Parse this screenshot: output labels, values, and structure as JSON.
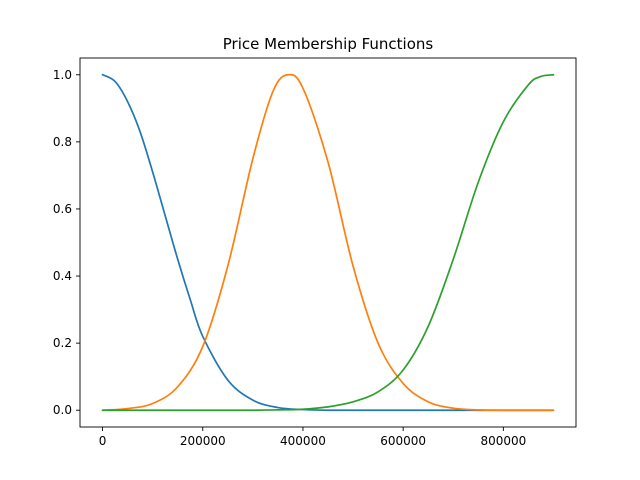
{
  "chart_data": {
    "type": "line",
    "title": "Price Membership Functions",
    "xlabel": "",
    "ylabel": "",
    "xlim": [
      -45000,
      945000
    ],
    "ylim": [
      -0.05,
      1.05
    ],
    "xticks": [
      0,
      200000,
      400000,
      600000,
      800000
    ],
    "xtick_labels": [
      "0",
      "200000",
      "400000",
      "600000",
      "800000"
    ],
    "yticks": [
      0.0,
      0.2,
      0.4,
      0.6,
      0.8,
      1.0
    ],
    "ytick_labels": [
      "0.0",
      "0.2",
      "0.4",
      "0.6",
      "0.8",
      "1.0"
    ],
    "grid": false,
    "series": [
      {
        "color": "#1f77b4",
        "x": [
          0,
          25000,
          50000,
          75000,
          100000,
          125000,
          150000,
          175000,
          200000,
          250000,
          300000,
          350000,
          400000,
          450000,
          500000,
          600000,
          700000,
          800000,
          900000
        ],
        "y": [
          1.0,
          0.98,
          0.92,
          0.83,
          0.71,
          0.58,
          0.45,
          0.33,
          0.22,
          0.09,
          0.03,
          0.008,
          0.002,
          0.0,
          0.0,
          0.0,
          0.0,
          0.0,
          0.0
        ]
      },
      {
        "color": "#ff7f0e",
        "x": [
          0,
          50000,
          100000,
          150000,
          200000,
          250000,
          300000,
          340000,
          370000,
          400000,
          450000,
          500000,
          550000,
          600000,
          650000,
          700000,
          750000,
          800000,
          900000
        ],
        "y": [
          0.0,
          0.005,
          0.02,
          0.07,
          0.19,
          0.43,
          0.75,
          0.95,
          1.0,
          0.96,
          0.74,
          0.43,
          0.2,
          0.08,
          0.025,
          0.006,
          0.001,
          0.0,
          0.0
        ]
      },
      {
        "color": "#2ca02c",
        "x": [
          0,
          100000,
          200000,
          300000,
          350000,
          400000,
          450000,
          500000,
          550000,
          600000,
          650000,
          700000,
          750000,
          800000,
          850000,
          875000,
          900000
        ],
        "y": [
          0.0,
          0.0,
          0.0,
          0.0,
          0.001,
          0.003,
          0.01,
          0.025,
          0.055,
          0.12,
          0.25,
          0.45,
          0.68,
          0.86,
          0.97,
          0.995,
          1.0
        ]
      }
    ]
  }
}
